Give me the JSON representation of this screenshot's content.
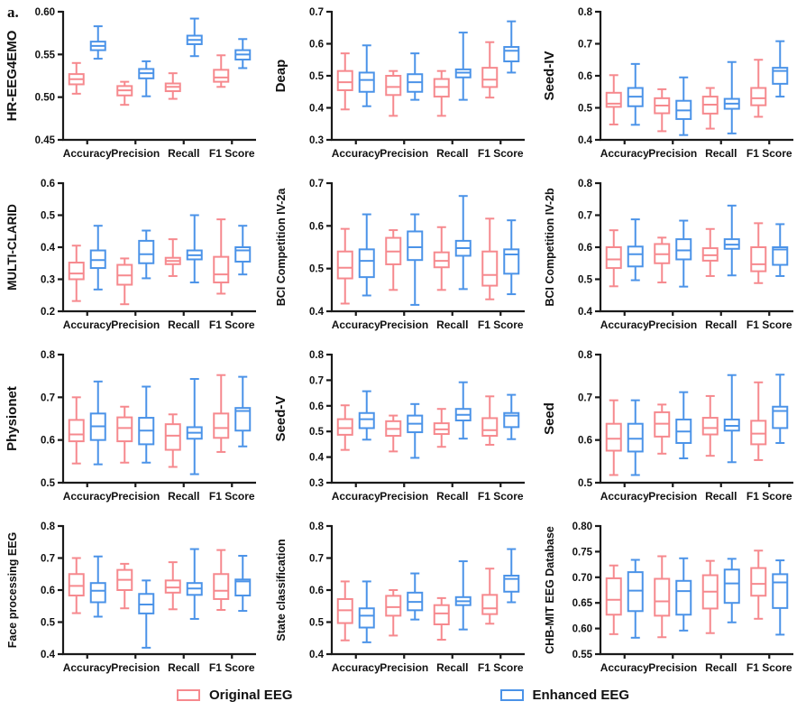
{
  "figure_label": "a.",
  "colors": {
    "original": "#F6898E",
    "enhanced": "#4B93E8",
    "axis": "#1a1a1a"
  },
  "legend": {
    "items": [
      {
        "label": "Original EEG",
        "color_key": "original"
      },
      {
        "label": "Enhanced EEG",
        "color_key": "enhanced"
      }
    ]
  },
  "categories": [
    "Accuracy",
    "Precision",
    "Recall",
    "F1 Score"
  ],
  "chart_data": [
    {
      "type": "box",
      "title": "HR-EEG4EMO",
      "ylabel": "HR-EEG4EMO",
      "ylim": [
        0.45,
        0.6
      ],
      "ystep": 0.05,
      "ydecimals": 2,
      "categories": [
        "Accuracy",
        "Precision",
        "Recall",
        "F1 Score"
      ],
      "series": [
        {
          "name": "Original EEG",
          "color_key": "original",
          "boxes": [
            [
              0.504,
              0.515,
              0.521,
              0.527,
              0.54
            ],
            [
              0.491,
              0.502,
              0.508,
              0.513,
              0.518
            ],
            [
              0.498,
              0.507,
              0.512,
              0.516,
              0.528
            ],
            [
              0.512,
              0.518,
              0.523,
              0.532,
              0.549
            ]
          ]
        },
        {
          "name": "Enhanced EEG",
          "color_key": "enhanced",
          "boxes": [
            [
              0.545,
              0.555,
              0.56,
              0.565,
              0.583
            ],
            [
              0.501,
              0.522,
              0.528,
              0.533,
              0.542
            ],
            [
              0.548,
              0.562,
              0.567,
              0.572,
              0.592
            ],
            [
              0.534,
              0.544,
              0.55,
              0.555,
              0.568
            ]
          ]
        }
      ]
    },
    {
      "type": "box",
      "title": "Deap",
      "ylabel": "Deap",
      "ylim": [
        0.3,
        0.7
      ],
      "ystep": 0.1,
      "ydecimals": 1,
      "categories": [
        "Accuracy",
        "Precision",
        "Recall",
        "F1 Score"
      ],
      "series": [
        {
          "name": "Original EEG",
          "color_key": "original",
          "boxes": [
            [
              0.395,
              0.455,
              0.48,
              0.515,
              0.57
            ],
            [
              0.375,
              0.44,
              0.465,
              0.5,
              0.515
            ],
            [
              0.375,
              0.435,
              0.465,
              0.49,
              0.515
            ],
            [
              0.432,
              0.465,
              0.488,
              0.525,
              0.605
            ]
          ]
        },
        {
          "name": "Enhanced EEG",
          "color_key": "enhanced",
          "boxes": [
            [
              0.405,
              0.45,
              0.487,
              0.51,
              0.595
            ],
            [
              0.425,
              0.45,
              0.48,
              0.505,
              0.57
            ],
            [
              0.425,
              0.495,
              0.51,
              0.52,
              0.635
            ],
            [
              0.51,
              0.545,
              0.578,
              0.59,
              0.67
            ]
          ]
        }
      ]
    },
    {
      "type": "box",
      "title": "Seed-IV",
      "ylabel": "Seed-IV",
      "ylim": [
        0.4,
        0.8
      ],
      "ystep": 0.1,
      "ydecimals": 1,
      "categories": [
        "Accuracy",
        "Precision",
        "Recall",
        "F1 Score"
      ],
      "series": [
        {
          "name": "Original EEG",
          "color_key": "original",
          "boxes": [
            [
              0.448,
              0.503,
              0.513,
              0.547,
              0.602
            ],
            [
              0.427,
              0.483,
              0.507,
              0.53,
              0.558
            ],
            [
              0.435,
              0.482,
              0.51,
              0.535,
              0.562
            ],
            [
              0.472,
              0.508,
              0.53,
              0.562,
              0.65
            ]
          ]
        },
        {
          "name": "Enhanced EEG",
          "color_key": "enhanced",
          "boxes": [
            [
              0.447,
              0.505,
              0.535,
              0.562,
              0.637
            ],
            [
              0.415,
              0.465,
              0.492,
              0.522,
              0.595
            ],
            [
              0.42,
              0.497,
              0.513,
              0.528,
              0.643
            ],
            [
              0.535,
              0.575,
              0.615,
              0.625,
              0.708
            ]
          ]
        }
      ]
    },
    {
      "type": "box",
      "title": "MULTI-CLARID",
      "ylabel": "MULTI-CLARID",
      "ylim": [
        0.2,
        0.6
      ],
      "ystep": 0.1,
      "ydecimals": 1,
      "categories": [
        "Accuracy",
        "Precision",
        "Recall",
        "F1 Score"
      ],
      "series": [
        {
          "name": "Original EEG",
          "color_key": "original",
          "boxes": [
            [
              0.232,
              0.3,
              0.318,
              0.352,
              0.405
            ],
            [
              0.222,
              0.283,
              0.312,
              0.345,
              0.365
            ],
            [
              0.31,
              0.347,
              0.357,
              0.367,
              0.425
            ],
            [
              0.255,
              0.29,
              0.315,
              0.37,
              0.487
            ]
          ]
        },
        {
          "name": "Enhanced EEG",
          "color_key": "enhanced",
          "boxes": [
            [
              0.268,
              0.335,
              0.36,
              0.39,
              0.467
            ],
            [
              0.303,
              0.35,
              0.378,
              0.42,
              0.452
            ],
            [
              0.29,
              0.362,
              0.375,
              0.39,
              0.5
            ],
            [
              0.315,
              0.355,
              0.39,
              0.4,
              0.467
            ]
          ]
        }
      ]
    },
    {
      "type": "box",
      "title": "BCI Competition IV-2a",
      "ylabel": "BCI Competition IV-2a",
      "ylim": [
        0.4,
        0.7
      ],
      "ystep": 0.1,
      "ydecimals": 1,
      "categories": [
        "Accuracy",
        "Precision",
        "Recall",
        "F1 Score"
      ],
      "series": [
        {
          "name": "Original EEG",
          "color_key": "original",
          "boxes": [
            [
              0.418,
              0.477,
              0.502,
              0.54,
              0.593
            ],
            [
              0.45,
              0.51,
              0.54,
              0.572,
              0.59
            ],
            [
              0.45,
              0.503,
              0.518,
              0.538,
              0.597
            ],
            [
              0.428,
              0.46,
              0.485,
              0.54,
              0.617
            ]
          ]
        },
        {
          "name": "Enhanced EEG",
          "color_key": "enhanced",
          "boxes": [
            [
              0.437,
              0.48,
              0.518,
              0.545,
              0.627
            ],
            [
              0.415,
              0.52,
              0.55,
              0.587,
              0.627
            ],
            [
              0.452,
              0.53,
              0.548,
              0.565,
              0.67
            ],
            [
              0.44,
              0.488,
              0.533,
              0.545,
              0.613
            ]
          ]
        }
      ]
    },
    {
      "type": "box",
      "title": "BCI Competition IV-2b",
      "ylabel": "BCI Competition IV-2b",
      "ylim": [
        0.4,
        0.8
      ],
      "ystep": 0.1,
      "ydecimals": 1,
      "categories": [
        "Accuracy",
        "Precision",
        "Recall",
        "F1 Score"
      ],
      "series": [
        {
          "name": "Original EEG",
          "color_key": "original",
          "boxes": [
            [
              0.478,
              0.535,
              0.562,
              0.6,
              0.653
            ],
            [
              0.49,
              0.55,
              0.578,
              0.61,
              0.63
            ],
            [
              0.51,
              0.558,
              0.575,
              0.597,
              0.657
            ],
            [
              0.488,
              0.525,
              0.547,
              0.6,
              0.675
            ]
          ]
        },
        {
          "name": "Enhanced EEG",
          "color_key": "enhanced",
          "boxes": [
            [
              0.497,
              0.54,
              0.578,
              0.602,
              0.687
            ],
            [
              0.477,
              0.562,
              0.59,
              0.625,
              0.683
            ],
            [
              0.512,
              0.595,
              0.608,
              0.625,
              0.73
            ],
            [
              0.51,
              0.545,
              0.593,
              0.6,
              0.672
            ]
          ]
        }
      ]
    },
    {
      "type": "box",
      "title": "Physionet",
      "ylabel": "Physionet",
      "ylim": [
        0.5,
        0.8
      ],
      "ystep": 0.1,
      "ydecimals": 1,
      "categories": [
        "Accuracy",
        "Precision",
        "Recall",
        "F1 Score"
      ],
      "series": [
        {
          "name": "Original EEG",
          "color_key": "original",
          "boxes": [
            [
              0.545,
              0.597,
              0.613,
              0.647,
              0.7
            ],
            [
              0.547,
              0.597,
              0.628,
              0.653,
              0.678
            ],
            [
              0.537,
              0.577,
              0.61,
              0.637,
              0.66
            ],
            [
              0.572,
              0.605,
              0.628,
              0.662,
              0.752
            ]
          ]
        },
        {
          "name": "Enhanced EEG",
          "color_key": "enhanced",
          "boxes": [
            [
              0.543,
              0.6,
              0.632,
              0.662,
              0.737
            ],
            [
              0.547,
              0.59,
              0.622,
              0.652,
              0.725
            ],
            [
              0.52,
              0.603,
              0.617,
              0.63,
              0.743
            ],
            [
              0.585,
              0.622,
              0.668,
              0.675,
              0.748
            ]
          ]
        }
      ]
    },
    {
      "type": "box",
      "title": "Seed-V",
      "ylabel": "Seed-V",
      "ylim": [
        0.3,
        0.8
      ],
      "ystep": 0.1,
      "ydecimals": 1,
      "categories": [
        "Accuracy",
        "Precision",
        "Recall",
        "F1 Score"
      ],
      "series": [
        {
          "name": "Original EEG",
          "color_key": "original",
          "boxes": [
            [
              0.428,
              0.487,
              0.513,
              0.548,
              0.602
            ],
            [
              0.422,
              0.483,
              0.51,
              0.54,
              0.562
            ],
            [
              0.44,
              0.49,
              0.508,
              0.532,
              0.588
            ],
            [
              0.448,
              0.483,
              0.505,
              0.552,
              0.637
            ]
          ]
        },
        {
          "name": "Enhanced EEG",
          "color_key": "enhanced",
          "boxes": [
            [
              0.468,
              0.513,
              0.548,
              0.572,
              0.657
            ],
            [
              0.397,
              0.497,
              0.53,
              0.562,
              0.607
            ],
            [
              0.472,
              0.543,
              0.565,
              0.588,
              0.692
            ],
            [
              0.47,
              0.517,
              0.562,
              0.572,
              0.643
            ]
          ]
        }
      ]
    },
    {
      "type": "box",
      "title": "Seed",
      "ylabel": "Seed",
      "ylim": [
        0.5,
        0.8
      ],
      "ystep": 0.1,
      "ydecimals": 1,
      "categories": [
        "Accuracy",
        "Precision",
        "Recall",
        "F1 Score"
      ],
      "series": [
        {
          "name": "Original EEG",
          "color_key": "original",
          "boxes": [
            [
              0.518,
              0.575,
              0.603,
              0.638,
              0.693
            ],
            [
              0.568,
              0.608,
              0.638,
              0.665,
              0.683
            ],
            [
              0.563,
              0.613,
              0.628,
              0.652,
              0.703
            ],
            [
              0.553,
              0.59,
              0.615,
              0.645,
              0.735
            ]
          ]
        },
        {
          "name": "Enhanced EEG",
          "color_key": "enhanced",
          "boxes": [
            [
              0.518,
              0.573,
              0.603,
              0.638,
              0.693
            ],
            [
              0.557,
              0.593,
              0.62,
              0.648,
              0.712
            ],
            [
              0.548,
              0.622,
              0.633,
              0.648,
              0.752
            ],
            [
              0.593,
              0.628,
              0.668,
              0.678,
              0.753
            ]
          ]
        }
      ]
    },
    {
      "type": "box",
      "title": "Face processing EEG",
      "ylabel": "Face processing EEG",
      "ylim": [
        0.4,
        0.8
      ],
      "ystep": 0.1,
      "ydecimals": 1,
      "categories": [
        "Accuracy",
        "Precision",
        "Recall",
        "F1 Score"
      ],
      "series": [
        {
          "name": "Original EEG",
          "color_key": "original",
          "boxes": [
            [
              0.528,
              0.583,
              0.613,
              0.65,
              0.7
            ],
            [
              0.543,
              0.6,
              0.632,
              0.663,
              0.682
            ],
            [
              0.54,
              0.592,
              0.608,
              0.63,
              0.687
            ],
            [
              0.538,
              0.572,
              0.598,
              0.65,
              0.725
            ]
          ]
        },
        {
          "name": "Enhanced EEG",
          "color_key": "enhanced",
          "boxes": [
            [
              0.517,
              0.562,
              0.598,
              0.622,
              0.705
            ],
            [
              0.42,
              0.527,
              0.555,
              0.588,
              0.63
            ],
            [
              0.51,
              0.585,
              0.605,
              0.622,
              0.728
            ],
            [
              0.535,
              0.583,
              0.627,
              0.633,
              0.707
            ]
          ]
        }
      ]
    },
    {
      "type": "box",
      "title": "State classification",
      "ylabel": "State classification",
      "ylim": [
        0.4,
        0.8
      ],
      "ystep": 0.1,
      "ydecimals": 1,
      "categories": [
        "Accuracy",
        "Precision",
        "Recall",
        "F1 Score"
      ],
      "series": [
        {
          "name": "Original EEG",
          "color_key": "original",
          "boxes": [
            [
              0.443,
              0.497,
              0.537,
              0.572,
              0.627
            ],
            [
              0.458,
              0.52,
              0.547,
              0.582,
              0.6
            ],
            [
              0.445,
              0.493,
              0.527,
              0.553,
              0.575
            ],
            [
              0.495,
              0.525,
              0.543,
              0.585,
              0.667
            ]
          ]
        },
        {
          "name": "Enhanced EEG",
          "color_key": "enhanced",
          "boxes": [
            [
              0.437,
              0.483,
              0.52,
              0.543,
              0.627
            ],
            [
              0.508,
              0.537,
              0.563,
              0.592,
              0.652
            ],
            [
              0.477,
              0.553,
              0.565,
              0.578,
              0.69
            ],
            [
              0.562,
              0.595,
              0.635,
              0.645,
              0.728
            ]
          ]
        }
      ]
    },
    {
      "type": "box",
      "title": "CHB-MIT EEG Database",
      "ylabel": "CHB-MIT EEG Database",
      "ylim": [
        0.55,
        0.8
      ],
      "ystep": 0.05,
      "ydecimals": 2,
      "categories": [
        "Accuracy",
        "Precision",
        "Recall",
        "F1 Score"
      ],
      "series": [
        {
          "name": "Original EEG",
          "color_key": "original",
          "boxes": [
            [
              0.589,
              0.627,
              0.656,
              0.698,
              0.723
            ],
            [
              0.583,
              0.625,
              0.653,
              0.697,
              0.741
            ],
            [
              0.591,
              0.639,
              0.672,
              0.704,
              0.732
            ],
            [
              0.619,
              0.664,
              0.687,
              0.718,
              0.752
            ]
          ]
        },
        {
          "name": "Enhanced EEG",
          "color_key": "enhanced",
          "boxes": [
            [
              0.582,
              0.634,
              0.674,
              0.71,
              0.734
            ],
            [
              0.596,
              0.627,
              0.673,
              0.693,
              0.737
            ],
            [
              0.612,
              0.65,
              0.688,
              0.715,
              0.736
            ],
            [
              0.588,
              0.64,
              0.69,
              0.706,
              0.733
            ]
          ]
        }
      ]
    }
  ]
}
